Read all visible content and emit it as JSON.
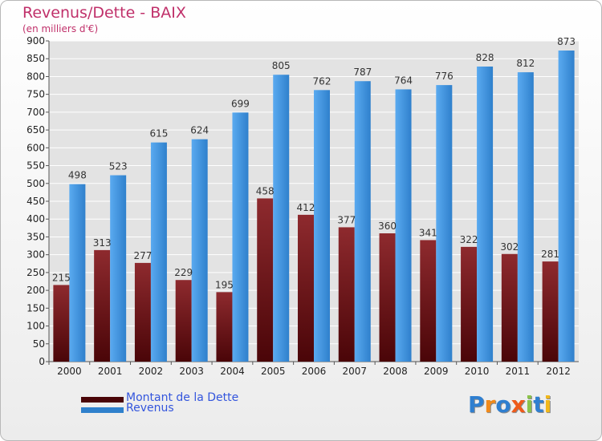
{
  "title": "Revenus/Dette - BAIX",
  "subtitle": "(en milliers d'€)",
  "colors": {
    "debt_top": "#8e2a2e",
    "debt_bottom": "#4a0508",
    "revenue_top": "#5aaaf0",
    "revenue_bottom": "#2f80cc",
    "title": "#c0306a",
    "legend_text": "#3355dd"
  },
  "legend": [
    {
      "label": "Montant de la Dette",
      "swatch": "debt"
    },
    {
      "label": "Revenus",
      "swatch": "revenue"
    }
  ],
  "logo": {
    "letters": [
      "P",
      "r",
      "o",
      "x",
      "i",
      "t",
      "i"
    ],
    "letter_colors": [
      "#2f7fd0",
      "#f28a1a",
      "#2f7fd0",
      "#ef5a1a",
      "#8bc34a",
      "#2f7fd0",
      "#f2b81a"
    ],
    "icon": "proxiti-logo"
  },
  "chart_data": {
    "type": "bar",
    "categories": [
      "2000",
      "2001",
      "2002",
      "2003",
      "2004",
      "2005",
      "2006",
      "2007",
      "2008",
      "2009",
      "2010",
      "2011",
      "2012"
    ],
    "series": [
      {
        "name": "Montant de la Dette",
        "key": "debt",
        "values": [
          215,
          313,
          277,
          229,
          195,
          458,
          412,
          377,
          360,
          341,
          322,
          302,
          281
        ]
      },
      {
        "name": "Revenus",
        "key": "revenue",
        "values": [
          498,
          523,
          615,
          624,
          699,
          805,
          762,
          787,
          764,
          776,
          828,
          812,
          873
        ]
      }
    ],
    "ylim": [
      0,
      900
    ],
    "yticks": [
      0,
      50,
      100,
      150,
      200,
      250,
      300,
      350,
      400,
      450,
      500,
      550,
      600,
      650,
      700,
      750,
      800,
      850,
      900
    ],
    "grid": true,
    "legend_position": "bottom-left"
  }
}
